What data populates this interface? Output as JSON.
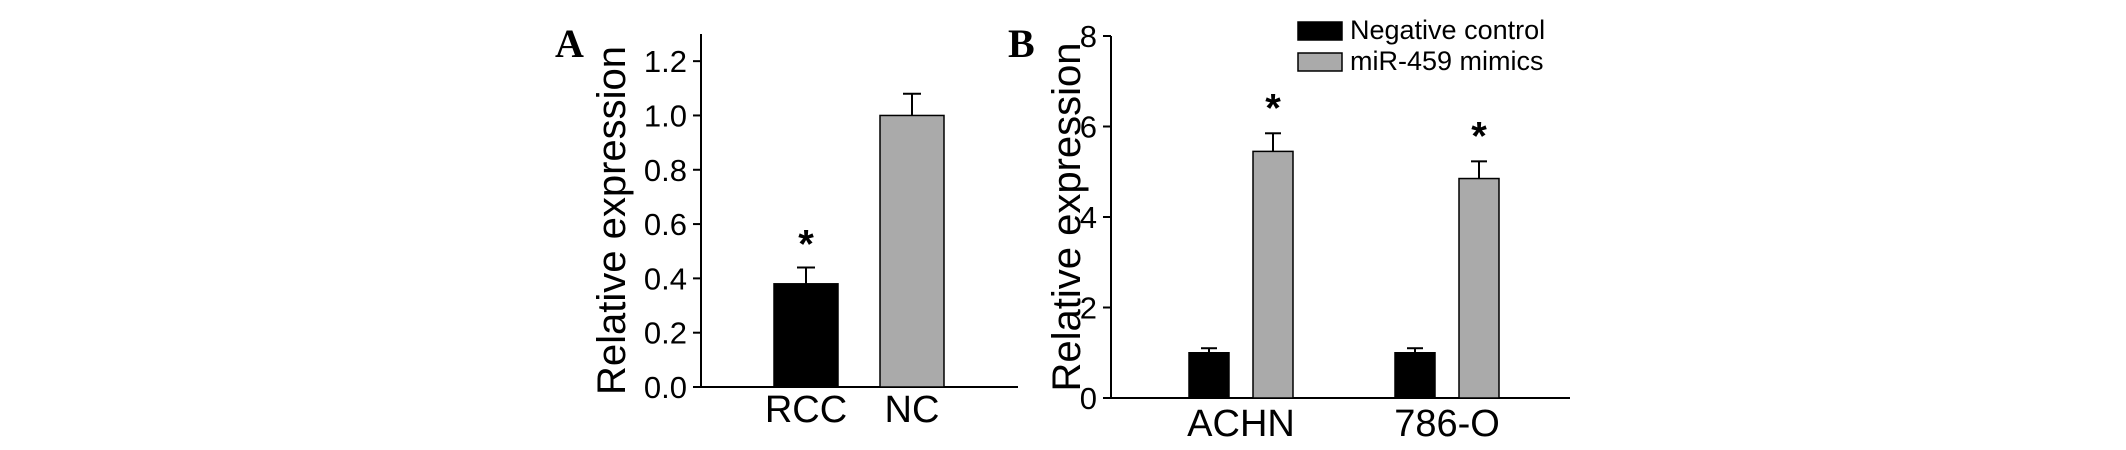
{
  "chart_data": [
    {
      "panel": "A",
      "type": "bar",
      "categories": [
        "RCC",
        "NC"
      ],
      "values": [
        0.38,
        1.0
      ],
      "errors": [
        0.06,
        0.08
      ],
      "colors": [
        "#000000",
        "#aaaaaa"
      ],
      "significance": [
        "*",
        ""
      ],
      "ylabel": "Relative expression",
      "xlabel": "",
      "ylim": [
        0,
        1.3
      ],
      "yticks": [
        0.0,
        0.2,
        0.4,
        0.6,
        0.8,
        1.0,
        1.2
      ],
      "ytick_labels": [
        "0.0",
        "0.2",
        "0.4",
        "0.6",
        "0.8",
        "1.0",
        "1.2"
      ],
      "grid": false
    },
    {
      "panel": "B",
      "type": "bar",
      "categories": [
        "ACHN",
        "786-O"
      ],
      "series": [
        {
          "name": "Negative control",
          "values": [
            1.0,
            1.0
          ],
          "errors": [
            0.1,
            0.1
          ],
          "color": "#000000",
          "significance": [
            "",
            ""
          ]
        },
        {
          "name": "miR-459 mimics",
          "values": [
            5.45,
            4.85
          ],
          "errors": [
            0.4,
            0.38
          ],
          "color": "#aaaaaa",
          "significance": [
            "*",
            "*"
          ]
        }
      ],
      "ylabel": "Relative expression",
      "xlabel": "",
      "ylim": [
        0,
        8
      ],
      "yticks": [
        0,
        2,
        4,
        6,
        8
      ],
      "ytick_labels": [
        "0",
        "2",
        "4",
        "6",
        "8"
      ],
      "legend_position": "top-right",
      "grid": false
    }
  ]
}
